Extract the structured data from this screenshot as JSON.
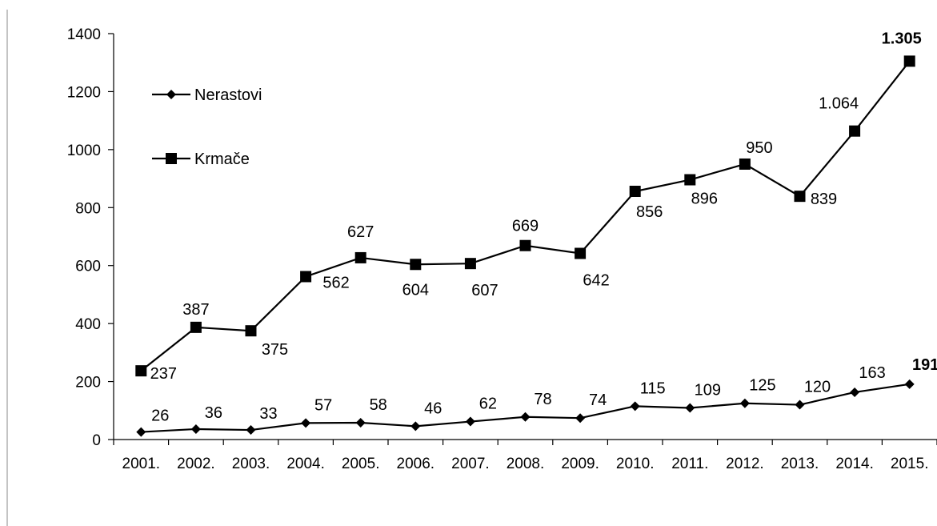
{
  "chart_data": {
    "type": "line",
    "categories": [
      "2001.",
      "2002.",
      "2003.",
      "2004.",
      "2005.",
      "2006.",
      "2007.",
      "2008.",
      "2009.",
      "2010.",
      "2011.",
      "2012.",
      "2013.",
      "2014.",
      "2015."
    ],
    "series": [
      {
        "name": "Nerastovi",
        "marker": "diamond",
        "values": [
          26,
          36,
          33,
          57,
          58,
          46,
          62,
          78,
          74,
          115,
          109,
          125,
          120,
          163,
          191
        ],
        "labels": [
          "26",
          "36",
          "33",
          "57",
          "58",
          "46",
          "62",
          "78",
          "74",
          "115",
          "109",
          "125",
          "120",
          "163",
          "191"
        ]
      },
      {
        "name": "Krmače",
        "marker": "square",
        "values": [
          237,
          387,
          375,
          562,
          627,
          604,
          607,
          669,
          642,
          856,
          896,
          950,
          839,
          1064,
          1305
        ],
        "labels": [
          "237",
          "387",
          "375",
          "562",
          "627",
          "604",
          "607",
          "669",
          "642",
          "856",
          "896",
          "950",
          "839",
          "1.064",
          "1.305"
        ]
      }
    ],
    "y_ticks": [
      "0",
      "200",
      "400",
      "600",
      "800",
      "1000",
      "1200",
      "1400"
    ],
    "ylim": [
      0,
      1400
    ],
    "grid": false,
    "legend_position": "top-left",
    "line_color": "#000000"
  }
}
